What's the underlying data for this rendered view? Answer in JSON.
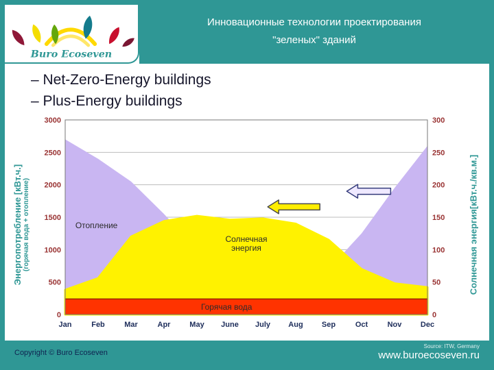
{
  "header": {
    "title_line1": "Инновационные технологии проектирования",
    "title_line2": "\"зеленых\" зданий",
    "logo_text": "Buro Ecoseven"
  },
  "bullets": [
    {
      "label": "– Net-Zero-Energy buildings"
    },
    {
      "label": "– Plus-Energy buildings"
    }
  ],
  "footer": {
    "copyright": "Copyright © Buro Ecoseven",
    "source": "Source: ITW, Germany",
    "website": "www.buroecoseven.ru"
  },
  "colors": {
    "teal": "#2F9795",
    "tick_labels": "#993333",
    "axis_titles": "#2F9795",
    "heating_area": "#C9B6F2",
    "solar_area": "#FFF200",
    "hot_water_area": "#FF3300"
  },
  "chart_data": {
    "type": "area",
    "grid": true,
    "legend": "none",
    "categories": [
      "Jan",
      "Feb",
      "Mar",
      "Apr",
      "May",
      "June",
      "July",
      "Aug",
      "Sep",
      "Oct",
      "Nov",
      "Dec"
    ],
    "left_axis": {
      "label": "Энергопотребление [кВт.ч.]",
      "sublabel": "(горячая вода + отопление)",
      "min": 0,
      "max": 3000,
      "step": 500
    },
    "right_axis": {
      "label": "Солнечная энергия[кВт.ч./кв.м.]",
      "min": 0,
      "max": 300,
      "step": 50
    },
    "series": [
      {
        "name": "Отопление",
        "axis": "left",
        "color": "#C9B6F2",
        "values": [
          2700,
          2400,
          2050,
          1550,
          1000,
          450,
          320,
          350,
          700,
          1250,
          1950,
          2600
        ]
      },
      {
        "name": "Солнечная энергия",
        "axis": "right",
        "color": "#FFF200",
        "values": [
          38,
          56,
          120,
          144,
          152,
          146,
          148,
          140,
          115,
          70,
          48,
          42
        ]
      },
      {
        "name": "Горячая вода",
        "axis": "left",
        "color": "#FF3300",
        "values": [
          240,
          240,
          240,
          240,
          240,
          240,
          240,
          240,
          240,
          240,
          240,
          240
        ]
      }
    ],
    "labels": [
      {
        "text": "Отопление",
        "month": 0.95,
        "value": 1330
      },
      {
        "text": "Солнечная\nэнергия",
        "month": 5.5,
        "value": 1120
      },
      {
        "text": "Горячая вода",
        "month": 4.9,
        "value": 75
      }
    ],
    "arrows": [
      {
        "name": "compare-arrow-outline",
        "fill": "#EFE9FF",
        "stroke": "#333A7A",
        "month": 8.55,
        "value": 1900,
        "length": 64
      },
      {
        "name": "compare-arrow-yellow",
        "fill": "#FFEE00",
        "stroke": "#4A4A4A",
        "month": 6.15,
        "value": 1660,
        "length": 76
      }
    ]
  }
}
